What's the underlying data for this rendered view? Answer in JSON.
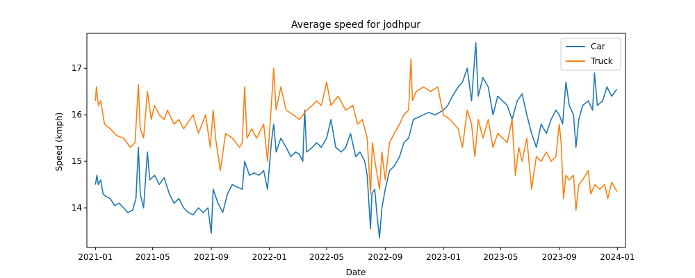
{
  "chart_data": {
    "type": "line",
    "title": "Average speed for jodhpur",
    "xlabel": "Date",
    "ylabel": "Speed (kmph)",
    "xlim": [
      "2020-12-14",
      "2024-01-18"
    ],
    "ylim": [
      13.15,
      17.75
    ],
    "x_ticks": [
      "2021-01",
      "2021-05",
      "2021-09",
      "2022-01",
      "2022-05",
      "2022-09",
      "2023-01",
      "2023-05",
      "2023-09",
      "2024-01"
    ],
    "y_ticks": [
      14,
      15,
      16,
      17
    ],
    "grid": false,
    "legend": "top-right",
    "series": [
      {
        "name": "Car",
        "color": "#1f77b4",
        "points": [
          [
            "2021-01-01",
            14.5
          ],
          [
            "2021-01-04",
            14.7
          ],
          [
            "2021-01-07",
            14.5
          ],
          [
            "2021-01-12",
            14.6
          ],
          [
            "2021-01-17",
            14.3
          ],
          [
            "2021-01-22",
            14.25
          ],
          [
            "2021-02-01",
            14.2
          ],
          [
            "2021-02-10",
            14.05
          ],
          [
            "2021-02-20",
            14.1
          ],
          [
            "2021-03-01",
            14.0
          ],
          [
            "2021-03-10",
            13.9
          ],
          [
            "2021-03-20",
            13.95
          ],
          [
            "2021-03-27",
            14.2
          ],
          [
            "2021-04-01",
            15.3
          ],
          [
            "2021-04-05",
            14.3
          ],
          [
            "2021-04-12",
            14.0
          ],
          [
            "2021-04-20",
            15.2
          ],
          [
            "2021-04-25",
            14.6
          ],
          [
            "2021-05-05",
            14.7
          ],
          [
            "2021-05-15",
            14.5
          ],
          [
            "2021-05-25",
            14.65
          ],
          [
            "2021-06-05",
            14.3
          ],
          [
            "2021-06-15",
            14.1
          ],
          [
            "2021-06-25",
            14.2
          ],
          [
            "2021-07-05",
            14.0
          ],
          [
            "2021-07-15",
            13.9
          ],
          [
            "2021-07-25",
            13.85
          ],
          [
            "2021-08-05",
            14.0
          ],
          [
            "2021-08-15",
            13.9
          ],
          [
            "2021-08-25",
            14.0
          ],
          [
            "2021-09-01",
            13.45
          ],
          [
            "2021-09-05",
            14.4
          ],
          [
            "2021-09-15",
            14.1
          ],
          [
            "2021-09-25",
            13.9
          ],
          [
            "2021-10-05",
            14.3
          ],
          [
            "2021-10-15",
            14.5
          ],
          [
            "2021-10-25",
            14.45
          ],
          [
            "2021-11-05",
            14.4
          ],
          [
            "2021-11-10",
            15.0
          ],
          [
            "2021-11-20",
            14.7
          ],
          [
            "2021-11-30",
            14.75
          ],
          [
            "2021-12-10",
            14.7
          ],
          [
            "2021-12-20",
            14.8
          ],
          [
            "2021-12-28",
            14.4
          ],
          [
            "2022-01-05",
            15.4
          ],
          [
            "2022-01-10",
            15.8
          ],
          [
            "2022-01-15",
            15.2
          ],
          [
            "2022-01-25",
            15.5
          ],
          [
            "2022-02-05",
            15.3
          ],
          [
            "2022-02-15",
            15.1
          ],
          [
            "2022-02-25",
            15.2
          ],
          [
            "2022-03-05",
            15.15
          ],
          [
            "2022-03-12",
            15.0
          ],
          [
            "2022-03-16",
            16.1
          ],
          [
            "2022-03-20",
            15.2
          ],
          [
            "2022-04-01",
            15.3
          ],
          [
            "2022-04-10",
            15.4
          ],
          [
            "2022-04-20",
            15.3
          ],
          [
            "2022-05-01",
            15.5
          ],
          [
            "2022-05-10",
            15.9
          ],
          [
            "2022-05-20",
            15.3
          ],
          [
            "2022-06-01",
            15.2
          ],
          [
            "2022-06-10",
            15.3
          ],
          [
            "2022-06-20",
            15.6
          ],
          [
            "2022-07-01",
            15.1
          ],
          [
            "2022-07-10",
            15.2
          ],
          [
            "2022-07-20",
            15.0
          ],
          [
            "2022-07-25",
            14.7
          ],
          [
            "2022-08-01",
            13.55
          ],
          [
            "2022-08-04",
            14.3
          ],
          [
            "2022-08-10",
            14.4
          ],
          [
            "2022-08-15",
            13.8
          ],
          [
            "2022-08-20",
            13.35
          ],
          [
            "2022-08-25",
            14.0
          ],
          [
            "2022-09-01",
            14.4
          ],
          [
            "2022-09-10",
            14.8
          ],
          [
            "2022-09-20",
            14.9
          ],
          [
            "2022-10-01",
            15.1
          ],
          [
            "2022-10-10",
            15.4
          ],
          [
            "2022-10-20",
            15.5
          ],
          [
            "2022-10-30",
            15.9
          ],
          [
            "2022-11-10",
            15.95
          ],
          [
            "2022-11-20",
            16.0
          ],
          [
            "2022-12-01",
            16.05
          ],
          [
            "2022-12-15",
            16.0
          ],
          [
            "2023-01-01",
            16.1
          ],
          [
            "2023-01-10",
            16.2
          ],
          [
            "2023-01-20",
            16.4
          ],
          [
            "2023-02-01",
            16.6
          ],
          [
            "2023-02-10",
            16.7
          ],
          [
            "2023-02-20",
            17.0
          ],
          [
            "2023-03-01",
            16.3
          ],
          [
            "2023-03-10",
            17.55
          ],
          [
            "2023-03-15",
            16.4
          ],
          [
            "2023-03-25",
            16.8
          ],
          [
            "2023-04-05",
            16.6
          ],
          [
            "2023-04-15",
            16.0
          ],
          [
            "2023-04-25",
            16.4
          ],
          [
            "2023-05-05",
            16.3
          ],
          [
            "2023-05-15",
            16.2
          ],
          [
            "2023-05-25",
            15.9
          ],
          [
            "2023-06-05",
            16.3
          ],
          [
            "2023-06-15",
            16.45
          ],
          [
            "2023-06-25",
            16.0
          ],
          [
            "2023-07-05",
            15.6
          ],
          [
            "2023-07-15",
            15.3
          ],
          [
            "2023-07-25",
            15.8
          ],
          [
            "2023-08-05",
            15.6
          ],
          [
            "2023-08-15",
            15.9
          ],
          [
            "2023-08-25",
            16.1
          ],
          [
            "2023-09-01",
            16.0
          ],
          [
            "2023-09-08",
            15.8
          ],
          [
            "2023-09-15",
            16.7
          ],
          [
            "2023-09-22",
            16.2
          ],
          [
            "2023-10-01",
            16.0
          ],
          [
            "2023-10-06",
            15.3
          ],
          [
            "2023-10-12",
            15.9
          ],
          [
            "2023-10-20",
            16.2
          ],
          [
            "2023-11-01",
            16.3
          ],
          [
            "2023-11-10",
            16.1
          ],
          [
            "2023-11-14",
            16.9
          ],
          [
            "2023-11-20",
            16.2
          ],
          [
            "2023-12-01",
            16.3
          ],
          [
            "2023-12-10",
            16.6
          ],
          [
            "2023-12-20",
            16.4
          ],
          [
            "2023-12-31",
            16.55
          ]
        ]
      },
      {
        "name": "Truck",
        "color": "#ff7f0e",
        "points": [
          [
            "2021-01-01",
            16.3
          ],
          [
            "2021-01-03",
            16.6
          ],
          [
            "2021-01-07",
            16.2
          ],
          [
            "2021-01-12",
            16.3
          ],
          [
            "2021-01-20",
            15.8
          ],
          [
            "2021-02-01",
            15.7
          ],
          [
            "2021-02-15",
            15.55
          ],
          [
            "2021-03-01",
            15.5
          ],
          [
            "2021-03-15",
            15.3
          ],
          [
            "2021-03-25",
            15.4
          ],
          [
            "2021-04-01",
            16.65
          ],
          [
            "2021-04-05",
            15.7
          ],
          [
            "2021-04-12",
            15.5
          ],
          [
            "2021-04-20",
            16.5
          ],
          [
            "2021-04-28",
            15.9
          ],
          [
            "2021-05-05",
            16.2
          ],
          [
            "2021-05-15",
            16.0
          ],
          [
            "2021-05-25",
            15.9
          ],
          [
            "2021-06-01",
            16.1
          ],
          [
            "2021-06-15",
            15.8
          ],
          [
            "2021-06-25",
            15.9
          ],
          [
            "2021-07-05",
            15.7
          ],
          [
            "2021-07-15",
            15.85
          ],
          [
            "2021-07-25",
            16.0
          ],
          [
            "2021-08-05",
            15.6
          ],
          [
            "2021-08-20",
            16.0
          ],
          [
            "2021-08-30",
            15.3
          ],
          [
            "2021-09-05",
            16.1
          ],
          [
            "2021-09-10",
            15.5
          ],
          [
            "2021-09-20",
            14.8
          ],
          [
            "2021-10-01",
            15.6
          ],
          [
            "2021-10-15",
            15.5
          ],
          [
            "2021-10-30",
            15.3
          ],
          [
            "2021-11-05",
            15.4
          ],
          [
            "2021-11-10",
            16.6
          ],
          [
            "2021-11-15",
            15.5
          ],
          [
            "2021-11-25",
            15.7
          ],
          [
            "2021-12-05",
            15.5
          ],
          [
            "2021-12-20",
            15.8
          ],
          [
            "2021-12-28",
            15.0
          ],
          [
            "2022-01-05",
            16.2
          ],
          [
            "2022-01-10",
            17.0
          ],
          [
            "2022-01-15",
            16.1
          ],
          [
            "2022-01-25",
            16.6
          ],
          [
            "2022-02-05",
            16.1
          ],
          [
            "2022-02-20",
            16.0
          ],
          [
            "2022-03-05",
            15.9
          ],
          [
            "2022-03-20",
            16.1
          ],
          [
            "2022-04-01",
            16.2
          ],
          [
            "2022-04-10",
            16.3
          ],
          [
            "2022-04-20",
            16.2
          ],
          [
            "2022-05-01",
            16.7
          ],
          [
            "2022-05-10",
            16.2
          ],
          [
            "2022-05-25",
            16.4
          ],
          [
            "2022-06-10",
            16.1
          ],
          [
            "2022-06-25",
            16.2
          ],
          [
            "2022-07-05",
            15.8
          ],
          [
            "2022-07-15",
            15.9
          ],
          [
            "2022-07-25",
            15.5
          ],
          [
            "2022-08-01",
            14.3
          ],
          [
            "2022-08-05",
            15.4
          ],
          [
            "2022-08-12",
            14.9
          ],
          [
            "2022-08-20",
            14.4
          ],
          [
            "2022-08-25",
            15.2
          ],
          [
            "2022-09-01",
            14.6
          ],
          [
            "2022-09-10",
            15.4
          ],
          [
            "2022-09-20",
            15.6
          ],
          [
            "2022-10-01",
            15.8
          ],
          [
            "2022-10-10",
            16.0
          ],
          [
            "2022-10-20",
            16.1
          ],
          [
            "2022-10-25",
            17.2
          ],
          [
            "2022-10-28",
            16.3
          ],
          [
            "2022-11-05",
            16.5
          ],
          [
            "2022-11-20",
            16.6
          ],
          [
            "2022-12-05",
            16.5
          ],
          [
            "2022-12-20",
            16.6
          ],
          [
            "2023-01-01",
            16.0
          ],
          [
            "2023-01-15",
            15.9
          ],
          [
            "2023-02-01",
            15.7
          ],
          [
            "2023-02-10",
            15.3
          ],
          [
            "2023-02-20",
            16.1
          ],
          [
            "2023-03-01",
            15.8
          ],
          [
            "2023-03-08",
            15.1
          ],
          [
            "2023-03-15",
            15.9
          ],
          [
            "2023-03-25",
            15.5
          ],
          [
            "2023-04-05",
            15.9
          ],
          [
            "2023-04-15",
            15.3
          ],
          [
            "2023-04-25",
            15.6
          ],
          [
            "2023-05-05",
            15.5
          ],
          [
            "2023-05-15",
            15.4
          ],
          [
            "2023-05-25",
            15.9
          ],
          [
            "2023-06-01",
            14.7
          ],
          [
            "2023-06-08",
            15.3
          ],
          [
            "2023-06-15",
            15.0
          ],
          [
            "2023-06-25",
            15.5
          ],
          [
            "2023-07-05",
            14.4
          ],
          [
            "2023-07-15",
            15.1
          ],
          [
            "2023-07-25",
            15.0
          ],
          [
            "2023-08-05",
            15.2
          ],
          [
            "2023-08-15",
            15.0
          ],
          [
            "2023-08-25",
            15.1
          ],
          [
            "2023-09-01",
            15.8
          ],
          [
            "2023-09-05",
            15.4
          ],
          [
            "2023-09-10",
            14.2
          ],
          [
            "2023-09-15",
            14.7
          ],
          [
            "2023-09-22",
            14.6
          ],
          [
            "2023-10-01",
            14.7
          ],
          [
            "2023-10-06",
            13.95
          ],
          [
            "2023-10-12",
            14.5
          ],
          [
            "2023-10-20",
            14.6
          ],
          [
            "2023-11-01",
            14.8
          ],
          [
            "2023-11-06",
            14.3
          ],
          [
            "2023-11-15",
            14.5
          ],
          [
            "2023-11-25",
            14.4
          ],
          [
            "2023-12-05",
            14.5
          ],
          [
            "2023-12-12",
            14.2
          ],
          [
            "2023-12-20",
            14.55
          ],
          [
            "2023-12-31",
            14.35
          ]
        ]
      }
    ]
  }
}
